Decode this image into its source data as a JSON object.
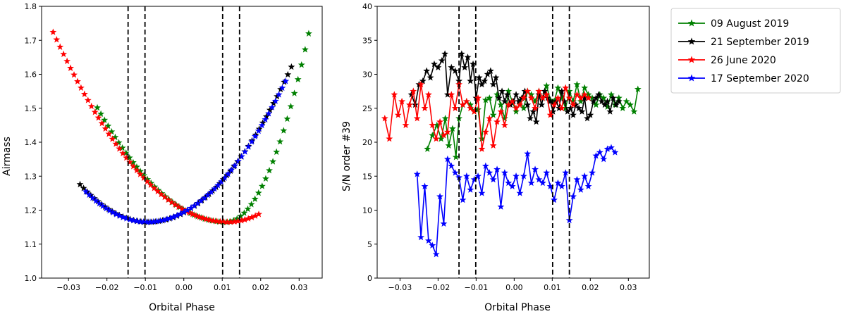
{
  "chart_data": [
    {
      "type": "scatter",
      "title": "",
      "xlabel": "Orbital Phase",
      "ylabel": "Airmass",
      "xlim": [
        -0.037,
        0.036
      ],
      "ylim": [
        1.0,
        1.8
      ],
      "xticks": [
        -0.03,
        -0.02,
        -0.01,
        0.0,
        0.01,
        0.02,
        0.03
      ],
      "xtick_labels": [
        "−0.03",
        "−0.02",
        "−0.01",
        "0.00",
        "0.01",
        "0.02",
        "0.03"
      ],
      "yticks": [
        1.0,
        1.1,
        1.2,
        1.3,
        1.4,
        1.5,
        1.6,
        1.7,
        1.8
      ],
      "ytick_labels": [
        "1.0",
        "1.1",
        "1.2",
        "1.3",
        "1.4",
        "1.5",
        "1.6",
        "1.7",
        "1.8"
      ],
      "vlines": [
        -0.0145,
        -0.0101,
        0.0101,
        0.0145
      ],
      "marker": "star",
      "curves": [
        {
          "name": "09 August 2019",
          "color": "#008000",
          "x0": -0.0225,
          "x1": 0.0325,
          "n": 60,
          "xmin": 0.011,
          "ymin": 1.165,
          "a": 300,
          "b": 1200
        },
        {
          "name": "21 September 2019",
          "color": "#000000",
          "x0": -0.027,
          "x1": 0.028,
          "n": 60,
          "xmin": -0.0092,
          "ymin": 1.165,
          "a": 350,
          "b": 330
        },
        {
          "name": "26 June 2020",
          "color": "#ff0000",
          "x0": -0.034,
          "x1": 0.0195,
          "n": 60,
          "xmin": 0.0115,
          "ymin": 1.165,
          "a": 270,
          "b": 360
        },
        {
          "name": "17 September 2020",
          "color": "#0000ff",
          "x0": -0.0255,
          "x1": 0.0265,
          "n": 60,
          "xmin": -0.0095,
          "ymin": 1.165,
          "a": 350,
          "b": 320
        }
      ]
    },
    {
      "type": "line",
      "title": "",
      "xlabel": "Orbital Phase",
      "ylabel": "S/N order #39",
      "xlim": [
        -0.036,
        0.0355
      ],
      "ylim": [
        0,
        40
      ],
      "xticks": [
        -0.03,
        -0.02,
        -0.01,
        0.0,
        0.01,
        0.02,
        0.03
      ],
      "xtick_labels": [
        "−0.03",
        "−0.02",
        "−0.01",
        "0.00",
        "0.01",
        "0.02",
        "0.03"
      ],
      "yticks": [
        0,
        5,
        10,
        15,
        20,
        25,
        30,
        35,
        40
      ],
      "ytick_labels": [
        "0",
        "5",
        "10",
        "15",
        "20",
        "25",
        "30",
        "35",
        "40"
      ],
      "vlines": [
        -0.0145,
        -0.0101,
        0.0101,
        0.0145
      ],
      "marker": "star",
      "series": [
        {
          "name": "09 August 2019",
          "color": "#008000",
          "x": [
            -0.0228,
            -0.0215,
            -0.0203,
            -0.0192,
            -0.0181,
            -0.0172,
            -0.0162,
            -0.0153,
            -0.0145,
            -0.0135,
            -0.0125,
            -0.0115,
            -0.0105,
            -0.0095,
            -0.0085,
            -0.0075,
            -0.0065,
            -0.0055,
            -0.0045,
            -0.0035,
            -0.0025,
            -0.0015,
            -0.0005,
            0.0005,
            0.0015,
            0.0025,
            0.0035,
            0.0045,
            0.0055,
            0.0065,
            0.0075,
            0.0085,
            0.0095,
            0.0105,
            0.0115,
            0.0125,
            0.0135,
            0.0145,
            0.0155,
            0.0165,
            0.0175,
            0.0185,
            0.0195,
            0.0205,
            0.0215,
            0.0225,
            0.0235,
            0.0245,
            0.0255,
            0.0265,
            0.0275,
            0.0285,
            0.0295,
            0.0305,
            0.0315,
            0.0325
          ],
          "y": [
            19.0,
            21.0,
            22.5,
            20.5,
            23.5,
            19.5,
            22.0,
            17.8,
            23.5,
            25.5,
            26.0,
            25.5,
            24.5,
            24.8,
            20.5,
            26.2,
            26.5,
            24.0,
            27.0,
            25.5,
            23.5,
            27.5,
            26.0,
            24.5,
            26.0,
            25.0,
            27.5,
            27.0,
            26.0,
            27.5,
            26.5,
            28.3,
            26.2,
            26.0,
            28.0,
            26.5,
            25.0,
            27.5,
            26.0,
            28.5,
            26.0,
            28.0,
            27.0,
            26.5,
            25.5,
            27.0,
            26.5,
            25.2,
            27.0,
            25.5,
            26.5,
            25.0,
            26.0,
            25.5,
            24.5,
            27.8
          ]
        },
        {
          "name": "21 September 2019",
          "color": "#000000",
          "x": [
            -0.027,
            -0.026,
            -0.025,
            -0.024,
            -0.023,
            -0.022,
            -0.021,
            -0.02,
            -0.019,
            -0.0182,
            -0.0175,
            -0.0165,
            -0.0155,
            -0.0145,
            -0.0138,
            -0.013,
            -0.0122,
            -0.0115,
            -0.0108,
            -0.01,
            -0.0092,
            -0.0085,
            -0.0078,
            -0.007,
            -0.0062,
            -0.0055,
            -0.0048,
            -0.004,
            -0.0032,
            -0.0025,
            -0.0018,
            -0.001,
            -0.0002,
            0.0005,
            0.0012,
            0.002,
            0.0028,
            0.0035,
            0.0042,
            0.005,
            0.0058,
            0.0065,
            0.0072,
            0.008,
            0.0088,
            0.0095,
            0.0102,
            0.011,
            0.0118,
            0.0125,
            0.0132,
            0.014,
            0.0148,
            0.0155,
            0.0162,
            0.017,
            0.0178,
            0.0185,
            0.0192,
            0.02,
            0.0208,
            0.0215,
            0.0222,
            0.023,
            0.0238,
            0.0245,
            0.0252,
            0.026,
            0.0268,
            0.0275
          ],
          "y": [
            27.0,
            25.5,
            28.5,
            29.0,
            30.5,
            29.5,
            31.5,
            31.0,
            32.0,
            33.0,
            27.0,
            31.0,
            30.5,
            29.0,
            33.0,
            31.0,
            32.5,
            29.0,
            31.5,
            26.5,
            29.5,
            28.5,
            29.0,
            30.0,
            30.5,
            28.5,
            29.5,
            26.5,
            27.5,
            26.0,
            27.0,
            25.5,
            26.0,
            27.0,
            26.0,
            26.5,
            27.5,
            25.5,
            23.5,
            24.5,
            23.0,
            27.0,
            25.5,
            27.5,
            26.5,
            26.0,
            24.5,
            26.0,
            25.0,
            27.5,
            26.0,
            24.5,
            25.0,
            24.0,
            25.5,
            25.0,
            24.5,
            26.5,
            23.5,
            24.0,
            26.0,
            26.5,
            27.0,
            26.0,
            25.5,
            26.0,
            24.5,
            26.5,
            25.5,
            26.0
          ]
        },
        {
          "name": "26 June 2020",
          "color": "#ff0000",
          "x": [
            -0.034,
            -0.0328,
            -0.0315,
            -0.0305,
            -0.0295,
            -0.0285,
            -0.0275,
            -0.0265,
            -0.0255,
            -0.0245,
            -0.0235,
            -0.0225,
            -0.0215,
            -0.0205,
            -0.0195,
            -0.0185,
            -0.0175,
            -0.0165,
            -0.0155,
            -0.0145,
            -0.0135,
            -0.0125,
            -0.0115,
            -0.0105,
            -0.0095,
            -0.0085,
            -0.0075,
            -0.0065,
            -0.0055,
            -0.0045,
            -0.0035,
            -0.0025,
            -0.0015,
            -0.0005,
            0.0005,
            0.0015,
            0.0025,
            0.0035,
            0.0045,
            0.0055,
            0.0065,
            0.0075,
            0.0085,
            0.0095,
            0.0105,
            0.0115,
            0.0125,
            0.0135,
            0.0145,
            0.0155,
            0.0165,
            0.0175,
            0.0185,
            0.0195
          ],
          "y": [
            23.5,
            20.5,
            27.0,
            24.0,
            26.0,
            22.5,
            25.5,
            27.5,
            23.5,
            28.5,
            25.0,
            27.0,
            22.5,
            20.5,
            23.0,
            21.0,
            21.5,
            27.0,
            25.0,
            28.5,
            25.5,
            26.0,
            25.0,
            24.5,
            26.5,
            19.0,
            21.5,
            23.5,
            19.5,
            23.0,
            24.5,
            22.5,
            25.5,
            26.0,
            25.0,
            25.5,
            26.5,
            27.5,
            26.5,
            25.0,
            27.5,
            26.5,
            27.0,
            24.0,
            25.5,
            26.5,
            25.0,
            28.0,
            26.5,
            25.5,
            27.0,
            26.5,
            27.0,
            26.5
          ]
        },
        {
          "name": "17 September 2020",
          "color": "#0000ff",
          "x": [
            -0.0255,
            -0.0245,
            -0.0235,
            -0.0225,
            -0.0215,
            -0.0205,
            -0.0195,
            -0.0185,
            -0.0175,
            -0.0165,
            -0.0155,
            -0.0145,
            -0.0135,
            -0.0125,
            -0.0115,
            -0.0105,
            -0.0095,
            -0.0085,
            -0.0075,
            -0.0065,
            -0.0055,
            -0.0045,
            -0.0035,
            -0.0025,
            -0.0015,
            -0.0005,
            0.0005,
            0.0015,
            0.0025,
            0.0035,
            0.0045,
            0.0055,
            0.0065,
            0.0075,
            0.0085,
            0.0095,
            0.0105,
            0.0115,
            0.0125,
            0.0135,
            0.0145,
            0.0155,
            0.0165,
            0.0175,
            0.0185,
            0.0195,
            0.0205,
            0.0215,
            0.0225,
            0.0235,
            0.0245,
            0.0255,
            0.0265
          ],
          "y": [
            15.3,
            6.0,
            13.5,
            5.5,
            4.8,
            3.5,
            12.0,
            8.0,
            17.5,
            16.5,
            15.5,
            14.8,
            11.5,
            15.0,
            13.0,
            14.5,
            15.0,
            12.5,
            16.5,
            15.5,
            14.5,
            16.0,
            10.5,
            15.5,
            14.0,
            13.5,
            15.0,
            12.5,
            15.0,
            18.3,
            14.0,
            16.0,
            14.5,
            14.0,
            15.5,
            13.5,
            11.5,
            14.0,
            13.5,
            15.5,
            8.5,
            12.0,
            14.5,
            13.0,
            15.0,
            13.5,
            15.5,
            18.0,
            18.5,
            17.5,
            19.0,
            19.2,
            18.5
          ]
        }
      ]
    }
  ],
  "legend": {
    "placement": "outside-right",
    "entries": [
      {
        "label": "09 August 2019",
        "color": "#008000"
      },
      {
        "label": "21 September 2019",
        "color": "#000000"
      },
      {
        "label": "26 June 2020",
        "color": "#ff0000"
      },
      {
        "label": "17 September 2020",
        "color": "#0000ff"
      }
    ]
  }
}
